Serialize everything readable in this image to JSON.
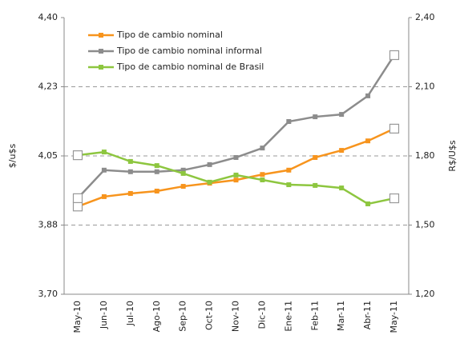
{
  "chart_data": {
    "type": "line",
    "categories": [
      "May-10",
      "Jun-10",
      "Jul-10",
      "Ago-10",
      "Sep-10",
      "Oct-10",
      "Nov-10",
      "Dic-10",
      "Ene-11",
      "Feb-11",
      "Mar-11",
      "Abr-11",
      "May-11"
    ],
    "ylabel": "$/u$s",
    "y2label": "R$/U$s",
    "ylim": [
      3.7,
      4.4
    ],
    "yticks": [
      {
        "value": 3.7,
        "label": "3,70"
      },
      {
        "value": 3.875,
        "label": "3,88"
      },
      {
        "value": 4.05,
        "label": "4,05"
      },
      {
        "value": 4.225,
        "label": "4,23"
      },
      {
        "value": 4.4,
        "label": "4,40"
      }
    ],
    "y2lim": [
      1.2,
      2.4
    ],
    "y2ticks": [
      {
        "value": 1.2,
        "label": "1,20"
      },
      {
        "value": 1.5,
        "label": "1,50"
      },
      {
        "value": 1.8,
        "label": "1,80"
      },
      {
        "value": 2.1,
        "label": "2,10"
      },
      {
        "value": 2.4,
        "label": "2,40"
      }
    ],
    "grid": true,
    "legend": "upper left",
    "series": [
      {
        "name": "Tipo de cambio nominal",
        "color": "#f7941d",
        "values": [
          3.922,
          3.947,
          3.955,
          3.961,
          3.973,
          3.981,
          3.989,
          4.003,
          4.014,
          4.046,
          4.064,
          4.088,
          4.119
        ]
      },
      {
        "name": "Tipo de cambio nominal informal",
        "color": "#8c8c8c",
        "values": [
          3.943,
          4.014,
          4.01,
          4.01,
          4.014,
          4.028,
          4.046,
          4.07,
          4.137,
          4.149,
          4.155,
          4.202,
          4.305
        ]
      },
      {
        "name": "Tipo de cambio nominal de Brasil",
        "color": "#8dc63f",
        "axis": "y2",
        "values": [
          1.803,
          1.817,
          1.776,
          1.758,
          1.724,
          1.686,
          1.717,
          1.696,
          1.675,
          1.672,
          1.661,
          1.592,
          1.616
        ]
      }
    ]
  }
}
